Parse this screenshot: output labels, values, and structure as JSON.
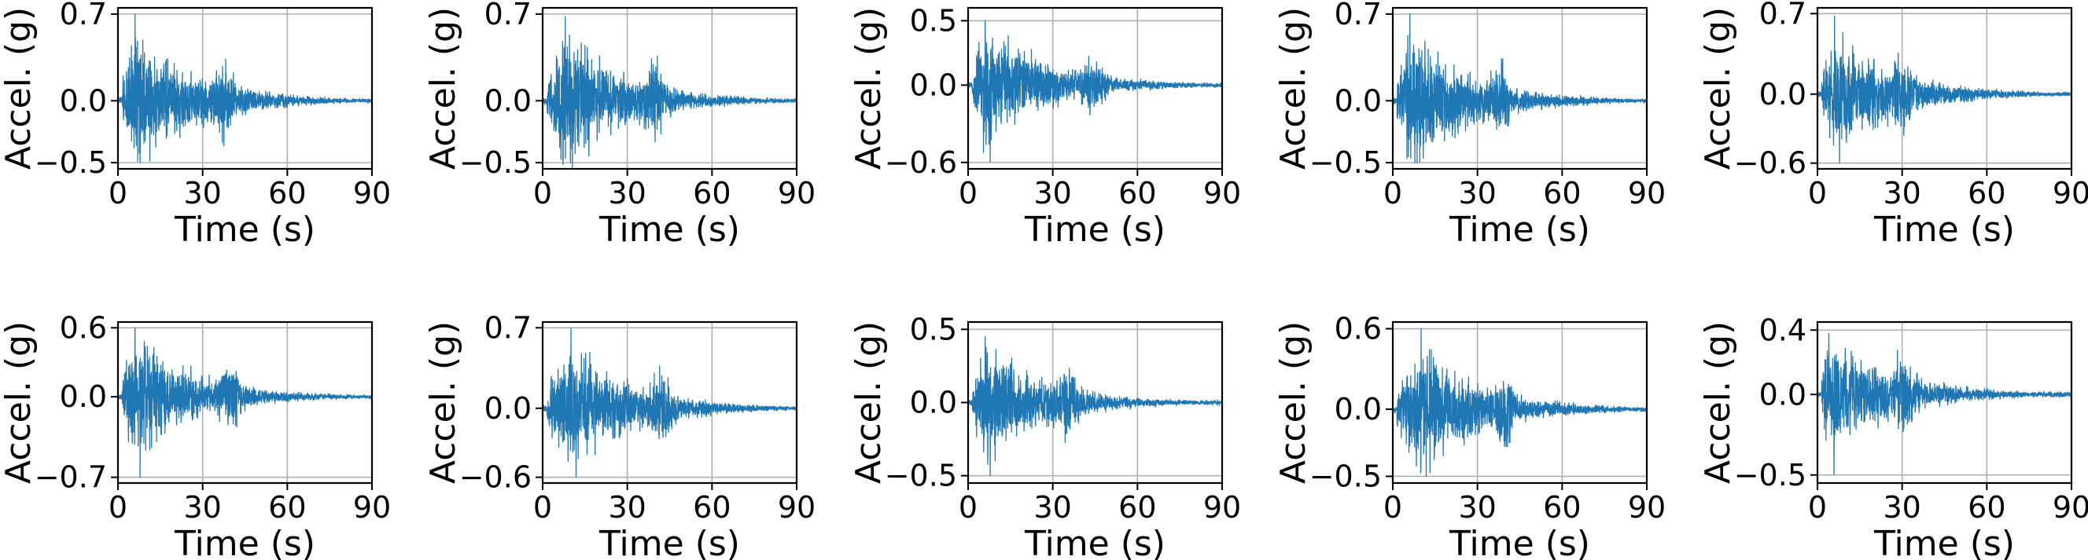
{
  "colors": {
    "signal": "#1f77b4",
    "grid": "#b0b0b0",
    "frame": "#000000"
  },
  "chart_data": [
    {
      "type": "line",
      "title": "",
      "xlabel": "Time (s)",
      "ylabel": "Accel. (g)",
      "xlim": [
        0,
        90
      ],
      "xticks": [
        0,
        30,
        60,
        90
      ],
      "ylim": [
        -0.55,
        0.75
      ],
      "yticks": [
        -0.5,
        0.0,
        0.7
      ],
      "ytick_labels": [
        "−0.5",
        "0.0",
        "0.7"
      ],
      "grid": true,
      "signal_shape": {
        "peak_time": 6,
        "peak_min": -0.5,
        "peak_max": 0.7,
        "duration": 90,
        "secondary_burst_time": 38
      },
      "series": [
        {
          "values_description_peak_abs": 0.7
        }
      ]
    },
    {
      "type": "line",
      "title": "",
      "xlabel": "Time (s)",
      "ylabel": "Accel. (g)",
      "xlim": [
        0,
        90
      ],
      "xticks": [
        0,
        30,
        60,
        90
      ],
      "ylim": [
        -0.55,
        0.75
      ],
      "yticks": [
        -0.5,
        0.0,
        0.7
      ],
      "ytick_labels": [
        "−0.5",
        "0.0",
        "0.7"
      ],
      "grid": true,
      "signal_shape": {
        "peak_time": 8,
        "peak_min": -0.5,
        "peak_max": 0.68,
        "duration": 90,
        "secondary_burst_time": 40
      },
      "series": [
        {
          "values_description_peak_abs": 0.68
        }
      ]
    },
    {
      "type": "line",
      "title": "",
      "xlabel": "Time (s)",
      "ylabel": "Accel. (g)",
      "xlim": [
        0,
        90
      ],
      "xticks": [
        0,
        30,
        60,
        90
      ],
      "ylim": [
        -0.65,
        0.6
      ],
      "yticks": [
        -0.6,
        0.0,
        0.5
      ],
      "ytick_labels": [
        "−0.6",
        "0.0",
        "0.5"
      ],
      "grid": true,
      "signal_shape": {
        "peak_time": 6,
        "peak_min": -0.6,
        "peak_max": 0.5,
        "duration": 90,
        "secondary_burst_time": 45
      },
      "series": [
        {
          "values_description_peak_abs": 0.6
        }
      ]
    },
    {
      "type": "line",
      "title": "",
      "xlabel": "Time (s)",
      "ylabel": "Accel. (g)",
      "xlim": [
        0,
        90
      ],
      "xticks": [
        0,
        30,
        60,
        90
      ],
      "ylim": [
        -0.55,
        0.75
      ],
      "yticks": [
        -0.5,
        0.0,
        0.7
      ],
      "ytick_labels": [
        "−0.5",
        "0.0",
        "0.7"
      ],
      "grid": true,
      "signal_shape": {
        "peak_time": 6,
        "peak_min": -0.5,
        "peak_max": 0.7,
        "duration": 90,
        "secondary_burst_time": 38
      },
      "series": [
        {
          "values_description_peak_abs": 0.7
        }
      ]
    },
    {
      "type": "line",
      "title": "",
      "xlabel": "Time (s)",
      "ylabel": "Accel. (g)",
      "xlim": [
        0,
        90
      ],
      "xticks": [
        0,
        30,
        60,
        90
      ],
      "ylim": [
        -0.65,
        0.75
      ],
      "yticks": [
        -0.6,
        0.0,
        0.7
      ],
      "ytick_labels": [
        "−0.6",
        "0.0",
        "0.7"
      ],
      "grid": true,
      "signal_shape": {
        "peak_time": 6,
        "peak_min": -0.6,
        "peak_max": 0.68,
        "duration": 90,
        "secondary_burst_time": 30
      },
      "series": [
        {
          "values_description_peak_abs": 0.68
        }
      ]
    },
    {
      "type": "line",
      "title": "",
      "xlabel": "Time (s)",
      "ylabel": "Accel. (g)",
      "xlim": [
        0,
        90
      ],
      "xticks": [
        0,
        30,
        60,
        90
      ],
      "ylim": [
        -0.75,
        0.65
      ],
      "yticks": [
        -0.7,
        0.0,
        0.6
      ],
      "ytick_labels": [
        "−0.7",
        "0.0",
        "0.6"
      ],
      "grid": true,
      "signal_shape": {
        "peak_time": 6,
        "peak_min": -0.7,
        "peak_max": 0.6,
        "duration": 90,
        "secondary_burst_time": 40
      },
      "series": [
        {
          "values_description_peak_abs": 0.7
        }
      ]
    },
    {
      "type": "line",
      "title": "",
      "xlabel": "Time (s)",
      "ylabel": "Accel. (g)",
      "xlim": [
        0,
        90
      ],
      "xticks": [
        0,
        30,
        60,
        90
      ],
      "ylim": [
        -0.65,
        0.75
      ],
      "yticks": [
        -0.6,
        0.0,
        0.7
      ],
      "ytick_labels": [
        "−0.6",
        "0.0",
        "0.7"
      ],
      "grid": true,
      "signal_shape": {
        "peak_time": 10,
        "peak_min": -0.6,
        "peak_max": 0.7,
        "duration": 90,
        "secondary_burst_time": 42
      },
      "series": [
        {
          "values_description_peak_abs": 0.7
        }
      ]
    },
    {
      "type": "line",
      "title": "",
      "xlabel": "Time (s)",
      "ylabel": "Accel. (g)",
      "xlim": [
        0,
        90
      ],
      "xticks": [
        0,
        30,
        60,
        90
      ],
      "ylim": [
        -0.55,
        0.55
      ],
      "yticks": [
        -0.5,
        0.0,
        0.5
      ],
      "ytick_labels": [
        "−0.5",
        "0.0",
        "0.5"
      ],
      "grid": true,
      "signal_shape": {
        "peak_time": 6,
        "peak_min": -0.5,
        "peak_max": 0.45,
        "duration": 90,
        "secondary_burst_time": 35
      },
      "series": [
        {
          "values_description_peak_abs": 0.5
        }
      ]
    },
    {
      "type": "line",
      "title": "",
      "xlabel": "Time (s)",
      "ylabel": "Accel. (g)",
      "xlim": [
        0,
        90
      ],
      "xticks": [
        0,
        30,
        60,
        90
      ],
      "ylim": [
        -0.55,
        0.65
      ],
      "yticks": [
        -0.5,
        0.0,
        0.6
      ],
      "ytick_labels": [
        "−0.5",
        "0.0",
        "0.6"
      ],
      "grid": true,
      "signal_shape": {
        "peak_time": 10,
        "peak_min": -0.5,
        "peak_max": 0.6,
        "duration": 90,
        "secondary_burst_time": 40
      },
      "series": [
        {
          "values_description_peak_abs": 0.6
        }
      ]
    },
    {
      "type": "line",
      "title": "",
      "xlabel": "Time (s)",
      "ylabel": "Accel. (g)",
      "xlim": [
        0,
        90
      ],
      "xticks": [
        0,
        30,
        60,
        90
      ],
      "ylim": [
        -0.55,
        0.45
      ],
      "yticks": [
        -0.5,
        0.0,
        0.4
      ],
      "ytick_labels": [
        "−0.5",
        "0.0",
        "0.4"
      ],
      "grid": true,
      "signal_shape": {
        "peak_time": 4,
        "peak_min": -0.5,
        "peak_max": 0.38,
        "duration": 90,
        "secondary_burst_time": 30
      },
      "series": [
        {
          "values_description_peak_abs": 0.5
        }
      ]
    }
  ]
}
